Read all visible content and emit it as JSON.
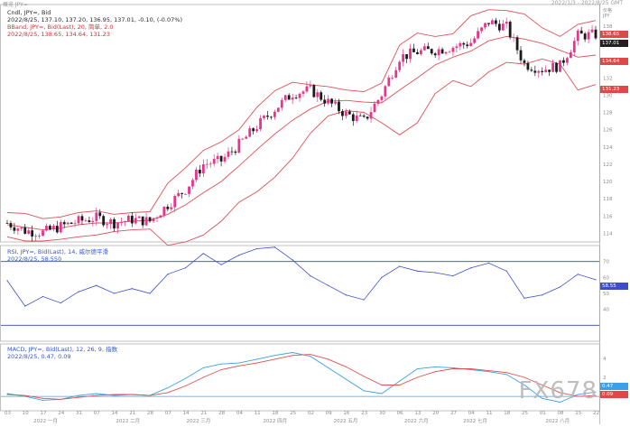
{
  "header": {
    "left_text": "概览  JPY=",
    "right_text": "2022/1/3 - 2022/8/25 GMT"
  },
  "legends": {
    "price_line1": "Cndl, JPY=, Bid",
    "price_line2": "2022/8/25, 137.10, 137.20, 136.95, 137.01, -0.10, (-0.07%)",
    "bband_line": "BBand, JPY=, Bid(Last), 20, 简单, 2.0",
    "bband_values": "2022/8/25, 138.65, 134.64, 131.23",
    "rsi_line": "RSI, JPY=, Bid(Last), 14, 威尔德平滑",
    "rsi_values": "2022/8/25, 58.550",
    "macd_line": "MACD, JPY=, Bid(Last), 12, 26, 9, 指数",
    "macd_values": "2022/8/25, 0.47, 0.09"
  },
  "price_tags": {
    "label_top": "价格",
    "label_unit": "JPY",
    "upper": "138.65",
    "current": "137.01",
    "mid": "134.64",
    "lower": "131.23",
    "rsi": "58.55",
    "macd": "0.47",
    "signal": "0.09"
  },
  "watermark": "FX678",
  "colors": {
    "bull": "#e8348a",
    "bear": "#1a1a1a",
    "bband": "#e05058",
    "rsi": "#3d4fc8",
    "rsi_ref": "#3346b8",
    "macd": "#3aa0e8",
    "signal": "#e05050",
    "panel_border": "#9a9a9a"
  },
  "chart_data": [
    {
      "type": "candlestick",
      "title": "Cndl, JPY=, Bid",
      "instrument": "JPY=",
      "timeframe": "daily",
      "date_range": [
        "2022-01-03",
        "2022-08-25"
      ],
      "y_ticks": [
        114,
        116,
        118,
        120,
        122,
        124,
        126,
        128,
        130,
        132,
        134,
        136,
        138
      ],
      "ylim": [
        113,
        140.5
      ],
      "close_path": [
        [
          "2022-01-03",
          115.2
        ],
        [
          "2022-01-10",
          114.3
        ],
        [
          "2022-01-17",
          114.1
        ],
        [
          "2022-01-24",
          114.8
        ],
        [
          "2022-01-31",
          115.4
        ],
        [
          "2022-02-07",
          115.8
        ],
        [
          "2022-02-14",
          115.2
        ],
        [
          "2022-02-21",
          115.6
        ],
        [
          "2022-02-28",
          115.4
        ],
        [
          "2022-03-07",
          117.3
        ],
        [
          "2022-03-14",
          119.1
        ],
        [
          "2022-03-21",
          122.0
        ],
        [
          "2022-03-28",
          122.4
        ],
        [
          "2022-04-04",
          124.3
        ],
        [
          "2022-04-11",
          126.4
        ],
        [
          "2022-04-18",
          128.4
        ],
        [
          "2022-04-25",
          130.2
        ],
        [
          "2022-05-02",
          130.6
        ],
        [
          "2022-05-09",
          129.2
        ],
        [
          "2022-05-16",
          127.8
        ],
        [
          "2022-05-23",
          127.0
        ],
        [
          "2022-05-30",
          130.1
        ],
        [
          "2022-06-06",
          134.4
        ],
        [
          "2022-06-13",
          135.0
        ],
        [
          "2022-06-20",
          135.2
        ],
        [
          "2022-06-27",
          135.6
        ],
        [
          "2022-07-04",
          136.1
        ],
        [
          "2022-07-11",
          138.5
        ],
        [
          "2022-07-18",
          137.9
        ],
        [
          "2022-07-25",
          133.6
        ],
        [
          "2022-08-01",
          133.0
        ],
        [
          "2022-08-08",
          133.4
        ],
        [
          "2022-08-15",
          136.9
        ],
        [
          "2022-08-25",
          137.01
        ]
      ],
      "last": {
        "open": 137.1,
        "high": 137.2,
        "low": 136.95,
        "close": 137.01,
        "change": -0.1,
        "change_pct": "-0.07%"
      }
    },
    {
      "type": "line",
      "title": "BBand, JPY=, Bid(Last), 20, 简单, 2.0",
      "series": [
        {
          "name": "upper",
          "values": [
            116.4,
            116.3,
            115.7,
            115.9,
            116.4,
            116.6,
            116.2,
            116.4,
            116.5,
            119.8,
            121.6,
            123.6,
            124.6,
            126.0,
            128.6,
            130.5,
            131.5,
            131.2,
            131.0,
            130.6,
            130.4,
            131.4,
            135.8,
            137.2,
            136.8,
            137.1,
            139.2,
            139.9,
            139.8,
            139.4,
            137.8,
            136.8,
            138.2,
            138.65
          ]
        },
        {
          "name": "middle",
          "values": [
            115.0,
            114.7,
            114.4,
            114.6,
            115.0,
            115.2,
            115.2,
            115.4,
            115.5,
            116.2,
            117.3,
            118.7,
            120.0,
            121.8,
            123.7,
            125.5,
            127.1,
            128.4,
            129.3,
            129.4,
            129.2,
            129.1,
            130.6,
            132.0,
            133.5,
            134.4,
            135.1,
            136.3,
            136.8,
            136.5,
            136.0,
            135.2,
            134.4,
            134.64
          ]
        },
        {
          "name": "lower",
          "values": [
            113.6,
            113.1,
            113.1,
            113.3,
            113.6,
            113.8,
            114.2,
            114.4,
            114.5,
            112.6,
            113.0,
            113.8,
            115.4,
            117.6,
            118.8,
            120.5,
            122.7,
            125.6,
            127.6,
            128.2,
            128.0,
            126.8,
            125.4,
            126.8,
            130.2,
            131.7,
            131.0,
            132.7,
            133.8,
            133.6,
            134.2,
            133.6,
            130.6,
            131.23
          ]
        }
      ]
    },
    {
      "type": "line",
      "title": "RSI, JPY=, Bid(Last), 14, 威尔德平滑",
      "y_ticks": [
        40,
        50,
        60,
        70
      ],
      "ylim": [
        20,
        80
      ],
      "reference_lines": [
        70,
        30
      ],
      "series": [
        {
          "name": "RSI",
          "values": [
            58,
            42,
            48,
            44,
            51,
            55,
            50,
            53,
            50,
            62,
            66,
            75,
            68,
            74,
            78,
            79,
            71,
            61,
            55,
            49,
            46,
            60,
            67,
            64,
            63,
            61,
            66,
            69,
            64,
            47,
            49,
            54,
            62,
            58.55
          ]
        }
      ]
    },
    {
      "type": "line",
      "title": "MACD, JPY=, Bid(Last), 12, 26, 9, 指数",
      "y_ticks": [
        0,
        2,
        4
      ],
      "ylim": [
        -1.5,
        5.5
      ],
      "series": [
        {
          "name": "MACD",
          "values": [
            0.3,
            0.0,
            -0.4,
            -0.3,
            0.1,
            0.3,
            0.1,
            0.2,
            0.1,
            0.9,
            1.9,
            3.0,
            3.4,
            3.5,
            3.9,
            4.3,
            4.6,
            4.2,
            3.0,
            1.8,
            0.6,
            0.3,
            1.6,
            2.9,
            3.1,
            3.0,
            2.8,
            2.6,
            2.3,
            1.2,
            -0.2,
            -0.6,
            0.2,
            0.47
          ]
        },
        {
          "name": "Signal",
          "values": [
            0.2,
            0.1,
            -0.2,
            -0.3,
            -0.1,
            0.1,
            0.2,
            0.2,
            0.1,
            0.4,
            1.1,
            2.0,
            2.8,
            3.2,
            3.5,
            3.9,
            4.3,
            4.4,
            3.9,
            3.1,
            2.1,
            1.2,
            1.2,
            2.0,
            2.6,
            2.9,
            2.9,
            2.7,
            2.5,
            2.0,
            1.2,
            0.4,
            0.0,
            0.09
          ]
        }
      ]
    }
  ],
  "x_axis_labels": [
    "2022 一月",
    "2022 二月",
    "2022 三月",
    "2022 四月",
    "2022 五月",
    "2022 六月",
    "2022 七月",
    "2022 八月"
  ],
  "x_day_labels": [
    "03",
    "10",
    "17",
    "24",
    "31",
    "07",
    "14",
    "21",
    "28",
    "07",
    "14",
    "21",
    "28",
    "04",
    "11",
    "18",
    "25",
    "02",
    "09",
    "16",
    "23",
    "30",
    "06",
    "13",
    "20",
    "27",
    "04",
    "11",
    "18",
    "25",
    "01",
    "08",
    "15",
    "22"
  ]
}
